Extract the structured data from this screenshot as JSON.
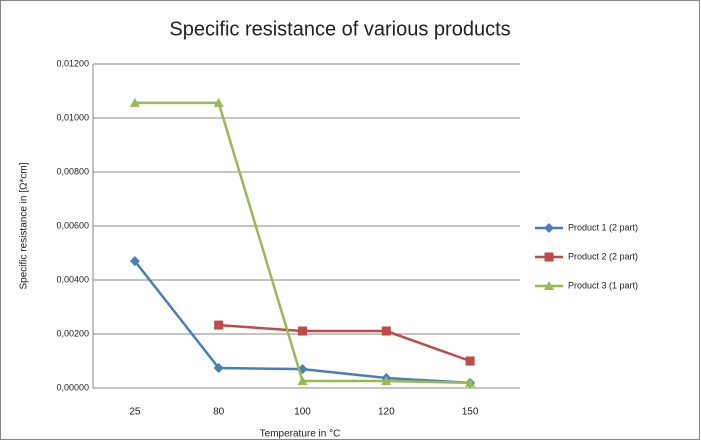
{
  "chart_data": {
    "type": "line",
    "title": "Specific resistance of various products",
    "x_label": "Temperature in °C",
    "y_label": "Specific resistance in [Ω*cm]",
    "categories": [
      "25",
      "80",
      "100",
      "120",
      "150"
    ],
    "series": [
      {
        "name": "Product 1 (2 part)",
        "color": "#4a7ebb",
        "marker": "diamond",
        "values": [
          0.0047,
          0.00074,
          0.0007,
          0.00037,
          0.00019
        ]
      },
      {
        "name": "Product 2 (2 part)",
        "color": "#be4b48",
        "marker": "square",
        "values": [
          null,
          0.00233,
          0.00211,
          0.00211,
          0.001
        ]
      },
      {
        "name": "Product 3 (1 part)",
        "color": "#98b954",
        "marker": "triangle",
        "values": [
          0.01056,
          0.01056,
          0.00026,
          0.00026,
          0.00019
        ]
      }
    ],
    "ylim": [
      0,
      0.012
    ],
    "yticks": [
      {
        "value": 0,
        "label": "0,00000"
      },
      {
        "value": 0.002,
        "label": "0,00200"
      },
      {
        "value": 0.004,
        "label": "0,00400"
      },
      {
        "value": 0.006,
        "label": "0,00600"
      },
      {
        "value": 0.008,
        "label": "0,00800"
      },
      {
        "value": 0.01,
        "label": "0,01000"
      },
      {
        "value": 0.012,
        "label": "0,01200"
      }
    ],
    "grid": true,
    "legend": "right"
  }
}
